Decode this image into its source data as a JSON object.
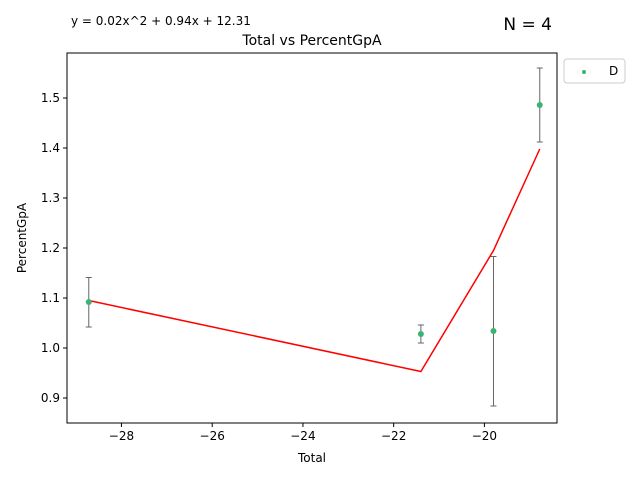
{
  "chart_data": {
    "type": "scatter",
    "title": "Total vs PercentGpA",
    "xlabel": "Total",
    "ylabel": "PercentGpA",
    "equation": "y = 0.02x^2 + 0.94x + 12.31",
    "n_label": "N = 4",
    "xlim": [
      -29.2,
      -18.4
    ],
    "ylim": [
      0.85,
      1.59
    ],
    "x_ticks": [
      -28,
      -26,
      -24,
      -22,
      -20
    ],
    "x_tick_labels": [
      "−28",
      "−26",
      "−24",
      "−22",
      "−20"
    ],
    "y_ticks": [
      0.9,
      1.0,
      1.1,
      1.2,
      1.3,
      1.4,
      1.5
    ],
    "y_tick_labels": [
      "0.9",
      "1.0",
      "1.1",
      "1.2",
      "1.3",
      "1.4",
      "1.5"
    ],
    "legend_position": "outside-top-right",
    "series": [
      {
        "name": "D",
        "color": "#3cb371",
        "points": [
          {
            "x": -28.72,
            "y": 1.092,
            "err_low": 1.042,
            "err_high": 1.141
          },
          {
            "x": -21.4,
            "y": 1.028,
            "err_low": 1.01,
            "err_high": 1.046
          },
          {
            "x": -19.8,
            "y": 1.034,
            "err_low": 0.884,
            "err_high": 1.183
          },
          {
            "x": -18.78,
            "y": 1.486,
            "err_low": 1.412,
            "err_high": 1.56
          }
        ]
      }
    ],
    "fit_line": {
      "color": "#ff0000",
      "points": [
        {
          "x": -28.72,
          "y": 1.095
        },
        {
          "x": -21.4,
          "y": 0.953
        },
        {
          "x": -19.8,
          "y": 1.195
        },
        {
          "x": -18.78,
          "y": 1.398
        }
      ]
    },
    "errorbar_color": "#666666"
  }
}
